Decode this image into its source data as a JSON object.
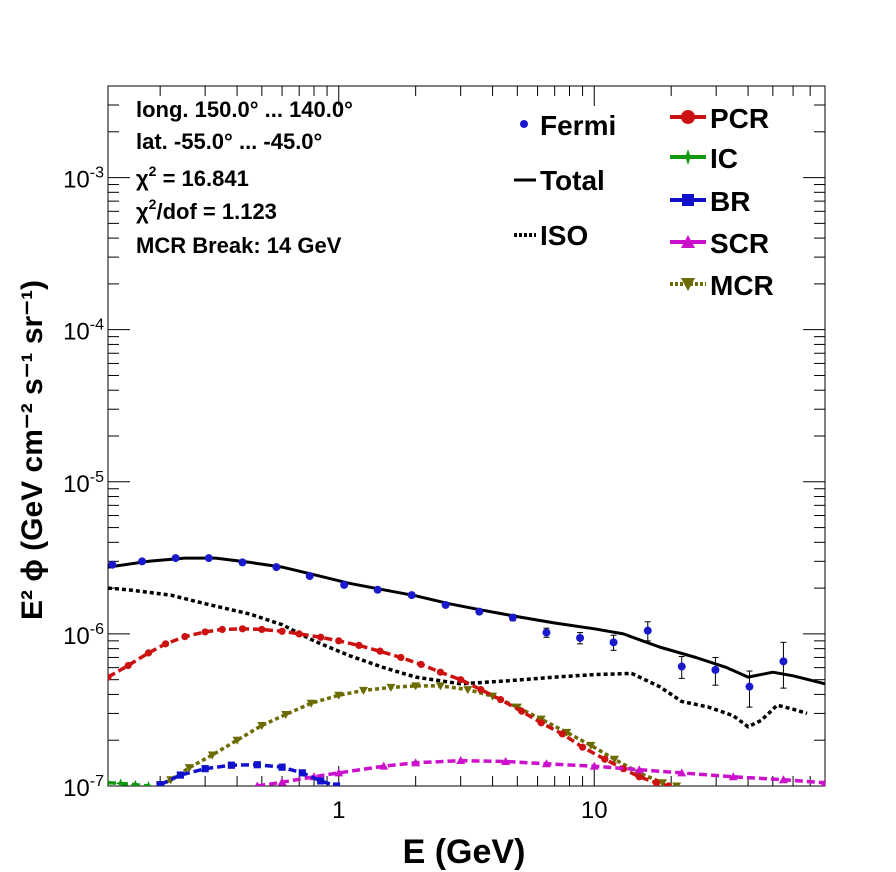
{
  "chart_data": {
    "type": "line",
    "x_scale": "log",
    "y_scale": "log",
    "xlim": [
      0.125,
      80
    ],
    "ylim": [
      1e-07,
      0.004
    ],
    "xlabel": "E (GeV)",
    "ylabel": "E² ϕ (GeV cm⁻² s⁻¹ sr⁻¹)",
    "x_tick_labels": [
      {
        "value": 1,
        "label": "1"
      },
      {
        "value": 10,
        "label": "10"
      }
    ],
    "y_tick_labels": [
      {
        "value": 1e-07,
        "mant": "10",
        "exp": "-7"
      },
      {
        "value": 1e-06,
        "mant": "10",
        "exp": "-6"
      },
      {
        "value": 1e-05,
        "mant": "10",
        "exp": "-5"
      },
      {
        "value": 0.0001,
        "mant": "10",
        "exp": "-4"
      },
      {
        "value": 0.001,
        "mant": "10",
        "exp": "-3"
      }
    ],
    "info": {
      "longitude": "long. 150.0° ... 140.0°",
      "latitude": "lat. -55.0° ... -45.0°",
      "chi2_sym": "χ",
      "chi2_exp": "2",
      "chi2_value": " = 16.841",
      "chi2dof_value": "/dof = 1.123",
      "mcr_break": "MCR Break: 14 GeV"
    },
    "legend_placement": "top-right",
    "series": [
      {
        "name": "Fermi",
        "style": "points-errorbars",
        "color": "#1a1acc",
        "points": [
          {
            "x": 0.13,
            "y": 2.85e-06,
            "err": 8e-08
          },
          {
            "x": 0.17,
            "y": 3e-06,
            "err": 8e-08
          },
          {
            "x": 0.23,
            "y": 3.15e-06,
            "err": 8e-08
          },
          {
            "x": 0.31,
            "y": 3.15e-06,
            "err": 8e-08
          },
          {
            "x": 0.42,
            "y": 2.95e-06,
            "err": 8e-08
          },
          {
            "x": 0.57,
            "y": 2.75e-06,
            "err": 8e-08
          },
          {
            "x": 0.77,
            "y": 2.4e-06,
            "err": 7e-08
          },
          {
            "x": 1.05,
            "y": 2.1e-06,
            "err": 6e-08
          },
          {
            "x": 1.42,
            "y": 1.95e-06,
            "err": 6e-08
          },
          {
            "x": 1.93,
            "y": 1.8e-06,
            "err": 6e-08
          },
          {
            "x": 2.62,
            "y": 1.55e-06,
            "err": 5e-08
          },
          {
            "x": 3.55,
            "y": 1.4e-06,
            "err": 5e-08
          },
          {
            "x": 4.8,
            "y": 1.28e-06,
            "err": 6e-08
          },
          {
            "x": 6.5,
            "y": 1.02e-06,
            "err": 7e-08
          },
          {
            "x": 8.8,
            "y": 9.4e-07,
            "err": 8e-08
          },
          {
            "x": 11.9,
            "y": 8.8e-07,
            "err": 1e-07
          },
          {
            "x": 16.2,
            "y": 1.05e-06,
            "err": 1.5e-07
          },
          {
            "x": 22,
            "y": 6.1e-07,
            "err": 1e-07
          },
          {
            "x": 29.8,
            "y": 5.8e-07,
            "err": 1.2e-07
          },
          {
            "x": 40.5,
            "y": 4.5e-07,
            "err": 1.2e-07
          },
          {
            "x": 55,
            "y": 6.6e-07,
            "err": 2.2e-07
          }
        ]
      },
      {
        "name": "Total",
        "style": "solid",
        "color": "#000000",
        "points": [
          {
            "x": 0.125,
            "y": 2.75e-06
          },
          {
            "x": 0.18,
            "y": 3e-06
          },
          {
            "x": 0.25,
            "y": 3.15e-06
          },
          {
            "x": 0.33,
            "y": 3.15e-06
          },
          {
            "x": 0.45,
            "y": 2.95e-06
          },
          {
            "x": 0.6,
            "y": 2.75e-06
          },
          {
            "x": 0.8,
            "y": 2.45e-06
          },
          {
            "x": 1.1,
            "y": 2.15e-06
          },
          {
            "x": 1.5,
            "y": 1.95e-06
          },
          {
            "x": 2.0,
            "y": 1.78e-06
          },
          {
            "x": 2.7,
            "y": 1.58e-06
          },
          {
            "x": 3.5,
            "y": 1.45e-06
          },
          {
            "x": 5,
            "y": 1.3e-06
          },
          {
            "x": 7,
            "y": 1.18e-06
          },
          {
            "x": 10,
            "y": 1.08e-06
          },
          {
            "x": 13,
            "y": 1e-06
          },
          {
            "x": 18,
            "y": 8.2e-07
          },
          {
            "x": 25,
            "y": 7e-07
          },
          {
            "x": 33,
            "y": 6e-07
          },
          {
            "x": 40,
            "y": 5.2e-07
          },
          {
            "x": 50,
            "y": 5.6e-07
          },
          {
            "x": 60,
            "y": 5.3e-07
          },
          {
            "x": 80,
            "y": 4.7e-07
          }
        ]
      },
      {
        "name": "ISO",
        "style": "dotted",
        "color": "#000000",
        "points": [
          {
            "x": 0.125,
            "y": 2e-06
          },
          {
            "x": 0.15,
            "y": 1.95e-06
          },
          {
            "x": 0.22,
            "y": 1.8e-06
          },
          {
            "x": 0.3,
            "y": 1.58e-06
          },
          {
            "x": 0.45,
            "y": 1.35e-06
          },
          {
            "x": 0.6,
            "y": 1.15e-06
          },
          {
            "x": 0.8,
            "y": 9e-07
          },
          {
            "x": 1.1,
            "y": 7.2e-07
          },
          {
            "x": 1.5,
            "y": 6e-07
          },
          {
            "x": 2.0,
            "y": 5.2e-07
          },
          {
            "x": 3.0,
            "y": 4.7e-07
          },
          {
            "x": 4.5,
            "y": 4.9e-07
          },
          {
            "x": 7,
            "y": 5.2e-07
          },
          {
            "x": 10,
            "y": 5.4e-07
          },
          {
            "x": 14,
            "y": 5.5e-07
          },
          {
            "x": 18,
            "y": 4.5e-07
          },
          {
            "x": 22,
            "y": 3.6e-07
          },
          {
            "x": 28,
            "y": 3.3e-07
          },
          {
            "x": 35,
            "y": 2.9e-07
          },
          {
            "x": 40,
            "y": 2.45e-07
          },
          {
            "x": 45,
            "y": 2.7e-07
          },
          {
            "x": 52,
            "y": 3.4e-07
          },
          {
            "x": 60,
            "y": 3.2e-07
          },
          {
            "x": 68,
            "y": 3e-07
          }
        ]
      },
      {
        "name": "PCR",
        "style": "dashed-markers",
        "marker": "circle",
        "color": "#cc1111",
        "points": [
          {
            "x": 0.125,
            "y": 5.2e-07
          },
          {
            "x": 0.15,
            "y": 6.2e-07
          },
          {
            "x": 0.18,
            "y": 7.5e-07
          },
          {
            "x": 0.21,
            "y": 8.6e-07
          },
          {
            "x": 0.25,
            "y": 9.6e-07
          },
          {
            "x": 0.3,
            "y": 1.03e-06
          },
          {
            "x": 0.35,
            "y": 1.07e-06
          },
          {
            "x": 0.42,
            "y": 1.08e-06
          },
          {
            "x": 0.5,
            "y": 1.07e-06
          },
          {
            "x": 0.6,
            "y": 1.04e-06
          },
          {
            "x": 0.7,
            "y": 1e-06
          },
          {
            "x": 0.85,
            "y": 9.5e-07
          },
          {
            "x": 1.0,
            "y": 9e-07
          },
          {
            "x": 1.2,
            "y": 8.4e-07
          },
          {
            "x": 1.45,
            "y": 7.7e-07
          },
          {
            "x": 1.75,
            "y": 7e-07
          },
          {
            "x": 2.1,
            "y": 6.3e-07
          },
          {
            "x": 2.5,
            "y": 5.6e-07
          },
          {
            "x": 3.0,
            "y": 5e-07
          },
          {
            "x": 3.6,
            "y": 4.3e-07
          },
          {
            "x": 4.3,
            "y": 3.7e-07
          },
          {
            "x": 5.2,
            "y": 3.1e-07
          },
          {
            "x": 6.2,
            "y": 2.6e-07
          },
          {
            "x": 7.5,
            "y": 2.2e-07
          },
          {
            "x": 9,
            "y": 1.8e-07
          },
          {
            "x": 11,
            "y": 1.5e-07
          },
          {
            "x": 13,
            "y": 1.3e-07
          },
          {
            "x": 15,
            "y": 1.15e-07
          },
          {
            "x": 17.5,
            "y": 1.05e-07
          },
          {
            "x": 19.5,
            "y": 1e-07
          }
        ]
      },
      {
        "name": "IC",
        "style": "dashed-markers",
        "marker": "star",
        "color": "#119911",
        "points": [
          {
            "x": 0.125,
            "y": 1.05e-07
          },
          {
            "x": 0.14,
            "y": 1.04e-07
          },
          {
            "x": 0.16,
            "y": 1.02e-07
          },
          {
            "x": 0.18,
            "y": 1e-07
          }
        ]
      },
      {
        "name": "BR",
        "style": "dashed-markers",
        "marker": "square",
        "color": "#1111cc",
        "points": [
          {
            "x": 0.2,
            "y": 1.02e-07
          },
          {
            "x": 0.24,
            "y": 1.18e-07
          },
          {
            "x": 0.3,
            "y": 1.3e-07
          },
          {
            "x": 0.38,
            "y": 1.37e-07
          },
          {
            "x": 0.48,
            "y": 1.38e-07
          },
          {
            "x": 0.6,
            "y": 1.33e-07
          },
          {
            "x": 0.72,
            "y": 1.22e-07
          },
          {
            "x": 0.85,
            "y": 1.08e-07
          },
          {
            "x": 0.98,
            "y": 1e-07
          }
        ]
      },
      {
        "name": "SCR",
        "style": "dashed-markers",
        "marker": "triangle-up",
        "color": "#cc11cc",
        "points": [
          {
            "x": 0.48,
            "y": 1e-07
          },
          {
            "x": 0.6,
            "y": 1.06e-07
          },
          {
            "x": 0.8,
            "y": 1.15e-07
          },
          {
            "x": 1.0,
            "y": 1.22e-07
          },
          {
            "x": 1.5,
            "y": 1.35e-07
          },
          {
            "x": 2.0,
            "y": 1.42e-07
          },
          {
            "x": 3.0,
            "y": 1.47e-07
          },
          {
            "x": 4.5,
            "y": 1.45e-07
          },
          {
            "x": 6.5,
            "y": 1.4e-07
          },
          {
            "x": 10,
            "y": 1.35e-07
          },
          {
            "x": 15,
            "y": 1.28e-07
          },
          {
            "x": 22,
            "y": 1.22e-07
          },
          {
            "x": 35,
            "y": 1.15e-07
          },
          {
            "x": 55,
            "y": 1.1e-07
          },
          {
            "x": 80,
            "y": 1.05e-07
          }
        ]
      },
      {
        "name": "MCR",
        "style": "dotted-markers",
        "marker": "triangle-down",
        "color": "#6b6b00",
        "points": [
          {
            "x": 0.2,
            "y": 1e-07
          },
          {
            "x": 0.22,
            "y": 1.1e-07
          },
          {
            "x": 0.26,
            "y": 1.32e-07
          },
          {
            "x": 0.32,
            "y": 1.6e-07
          },
          {
            "x": 0.4,
            "y": 2e-07
          },
          {
            "x": 0.5,
            "y": 2.5e-07
          },
          {
            "x": 0.62,
            "y": 2.95e-07
          },
          {
            "x": 0.78,
            "y": 3.5e-07
          },
          {
            "x": 1.0,
            "y": 3.95e-07
          },
          {
            "x": 1.25,
            "y": 4.25e-07
          },
          {
            "x": 1.6,
            "y": 4.45e-07
          },
          {
            "x": 2.0,
            "y": 4.55e-07
          },
          {
            "x": 2.5,
            "y": 4.55e-07
          },
          {
            "x": 3.2,
            "y": 4.3e-07
          },
          {
            "x": 4.0,
            "y": 3.9e-07
          },
          {
            "x": 5.0,
            "y": 3.3e-07
          },
          {
            "x": 6.2,
            "y": 2.75e-07
          },
          {
            "x": 7.8,
            "y": 2.25e-07
          },
          {
            "x": 9.7,
            "y": 1.85e-07
          },
          {
            "x": 12,
            "y": 1.5e-07
          },
          {
            "x": 15,
            "y": 1.22e-07
          },
          {
            "x": 18.5,
            "y": 1.05e-07
          },
          {
            "x": 21,
            "y": 1e-07
          }
        ]
      }
    ]
  }
}
